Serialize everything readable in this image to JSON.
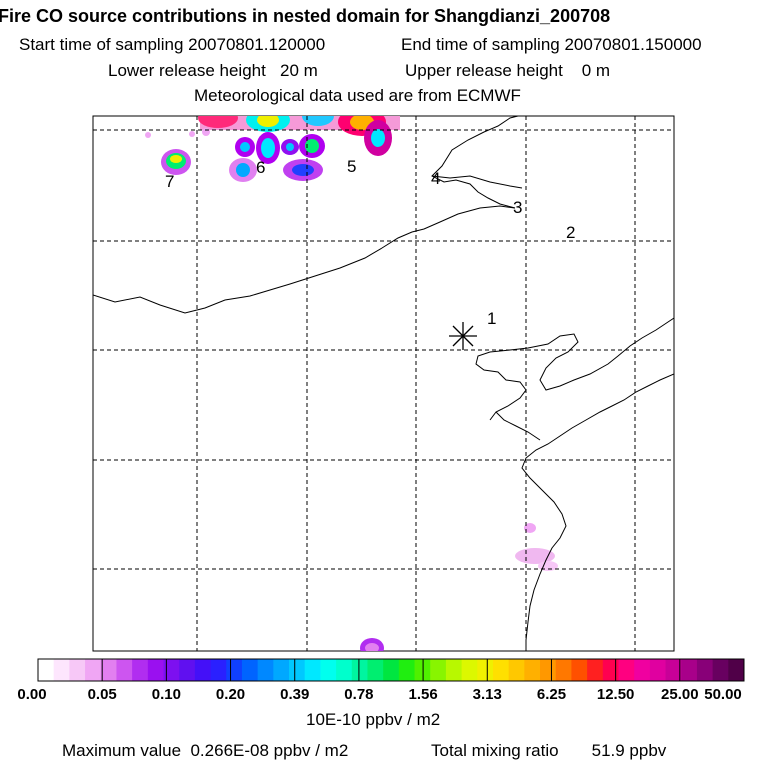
{
  "header": {
    "title": "Fire CO source contributions in nested domain for Shangdianzi_200708",
    "start_label": "Start time of sampling 20070801.120000",
    "end_label": "End time of sampling 20070801.150000",
    "lower_label": "Lower release height   20 m",
    "upper_label": "Upper release height    0 m",
    "met_label": "Meteorological data used are from ECMWF"
  },
  "map": {
    "site_marker": "asterisk-icon",
    "cluster_labels": [
      "1",
      "2",
      "3",
      "4",
      "5",
      "6",
      "7"
    ]
  },
  "colorbar": {
    "ticks": [
      "0.00",
      "0.05",
      "0.10",
      "0.20",
      "0.39",
      "0.78",
      "1.56",
      "3.13",
      "6.25",
      "12.50",
      "25.00",
      "50.00"
    ],
    "unit": "10E-10 ppbv / m2",
    "colors": [
      "#ffffff",
      "#fde6fd",
      "#f7c8f7",
      "#f0a6f4",
      "#e27ff0",
      "#cd55f0",
      "#b12df0",
      "#9a10f0",
      "#7d10f0",
      "#6010f0",
      "#4410f8",
      "#2a20ff",
      "#1040ff",
      "#0064ff",
      "#0088ff",
      "#00a8ff",
      "#00c8ff",
      "#00e8ff",
      "#00ffee",
      "#00ffcc",
      "#00f5a0",
      "#00ee70",
      "#00e640",
      "#20ee10",
      "#50f000",
      "#88f500",
      "#b8f800",
      "#dcf800",
      "#f0f000",
      "#ffe000",
      "#ffc800",
      "#ffb000",
      "#ff9800",
      "#ff7800",
      "#ff5000",
      "#ff2020",
      "#ff0050",
      "#ff0080",
      "#f000a0",
      "#e000a0",
      "#c80098",
      "#a8008a",
      "#880078",
      "#680060",
      "#500048"
    ]
  },
  "footer": {
    "max_label": "Maximum value  0.266E-08 ppbv / m2",
    "total_label": "Total mixing ratio       51.9 ppbv"
  }
}
